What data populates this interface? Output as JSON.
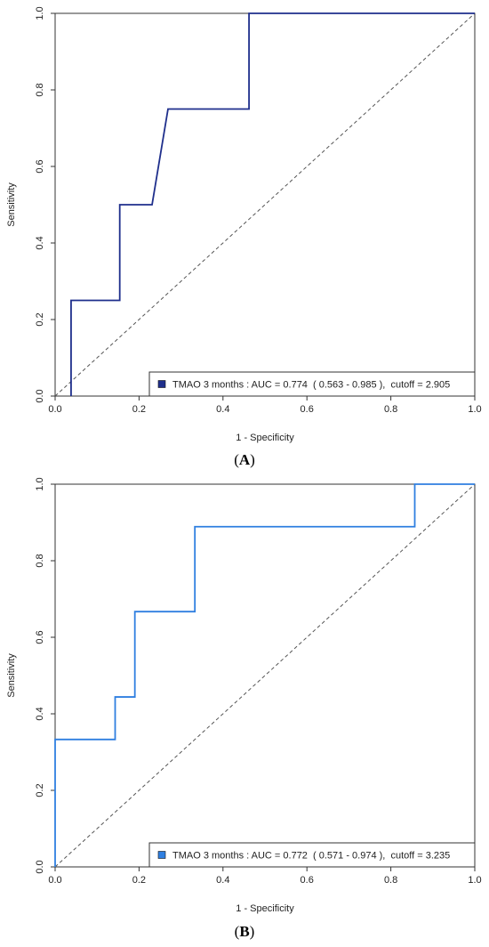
{
  "chart_data": [
    {
      "type": "line",
      "panel": "A",
      "xlabel": "1 - Specificity",
      "ylabel": "Sensitivity",
      "xlim": [
        0,
        1
      ],
      "ylim": [
        0,
        1
      ],
      "x_ticks": [
        "0.0",
        "0.2",
        "0.4",
        "0.6",
        "0.8",
        "1.0"
      ],
      "y_ticks": [
        "0.0",
        "0.2",
        "0.4",
        "0.6",
        "0.8",
        "1.0"
      ],
      "grid": false,
      "legend_position": "bottom-right",
      "series": [
        {
          "name": "TMAO 3 months : AUC = 0.774  ( 0.563 - 0.985 ),  cutoff = 2.905",
          "color": "#1f2f8c",
          "x": [
            0.038,
            0.038,
            0.154,
            0.154,
            0.231,
            0.269,
            0.462,
            0.462,
            1.0
          ],
          "y": [
            0.0,
            0.25,
            0.25,
            0.5,
            0.5,
            0.75,
            0.75,
            1.0,
            1.0
          ]
        }
      ],
      "reference_line": {
        "x": [
          0,
          1
        ],
        "y": [
          0,
          1
        ],
        "style": "dashed",
        "color": "#555555"
      }
    },
    {
      "type": "line",
      "panel": "B",
      "xlabel": "1 - Specificity",
      "ylabel": "Sensitivity",
      "xlim": [
        0,
        1
      ],
      "ylim": [
        0,
        1
      ],
      "x_ticks": [
        "0.0",
        "0.2",
        "0.4",
        "0.6",
        "0.8",
        "1.0"
      ],
      "y_ticks": [
        "0.0",
        "0.2",
        "0.4",
        "0.6",
        "0.8",
        "1.0"
      ],
      "grid": false,
      "legend_position": "bottom-right",
      "series": [
        {
          "name": "TMAO 3 months : AUC = 0.772  ( 0.571 - 0.974 ),  cutoff = 3.235",
          "color": "#2f7fe0",
          "x": [
            0.0,
            0.0,
            0.143,
            0.143,
            0.19,
            0.19,
            0.333,
            0.333,
            0.857,
            0.857,
            1.0
          ],
          "y": [
            0.0,
            0.333,
            0.333,
            0.444,
            0.444,
            0.667,
            0.667,
            0.889,
            0.889,
            1.0,
            1.0
          ]
        }
      ],
      "reference_line": {
        "x": [
          0,
          1
        ],
        "y": [
          0,
          1
        ],
        "style": "dashed",
        "color": "#555555"
      }
    }
  ],
  "panel_labels": [
    "(A)",
    "(B)"
  ]
}
